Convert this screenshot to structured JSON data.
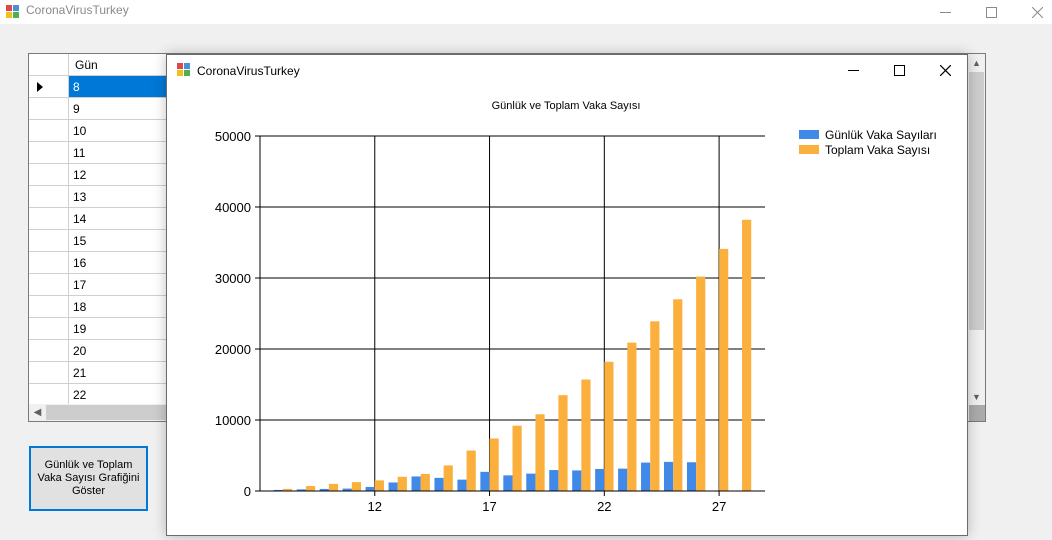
{
  "window": {
    "title": "CoronaVirusTurkey"
  },
  "grid": {
    "column_header": "Gün",
    "rows": [
      "8",
      "9",
      "10",
      "11",
      "12",
      "13",
      "14",
      "15",
      "16",
      "17",
      "18",
      "19",
      "20",
      "21",
      "22"
    ],
    "selected_index": 0
  },
  "button": {
    "label": "Günlük ve Toplam Vaka Sayısı Grafiğini Göster"
  },
  "chart_window": {
    "title": "CoronaVirusTurkey"
  },
  "chart_data": {
    "type": "bar",
    "title": "Günlük ve Toplam Vaka Sayısı",
    "xlabel": "",
    "ylabel": "",
    "x": [
      8,
      9,
      10,
      11,
      12,
      13,
      14,
      15,
      16,
      17,
      18,
      19,
      20,
      21,
      22,
      23,
      24,
      25,
      26,
      27,
      28
    ],
    "x_ticks": [
      12,
      17,
      22,
      27
    ],
    "ylim": [
      0,
      50000
    ],
    "y_ticks": [
      0,
      10000,
      20000,
      30000,
      40000,
      50000
    ],
    "grid": true,
    "legend_position": "top-right",
    "series": [
      {
        "name": "Günlük Vaka Sayıları",
        "color": "#4189e9",
        "values": [
          150,
          230,
          290,
          340,
          570,
          1200,
          2050,
          1850,
          1600,
          2700,
          2200,
          2450,
          2950,
          2900,
          3100,
          3150,
          4000,
          4100,
          4050,
          0,
          0
        ]
      },
      {
        "name": "Toplam Vaka Sayısı",
        "color": "#fbb03d",
        "values": [
          300,
          700,
          1000,
          1250,
          1500,
          2000,
          2400,
          3600,
          5700,
          7400,
          9200,
          10800,
          13500,
          15700,
          18200,
          20900,
          23900,
          27000,
          30200,
          34100,
          38200
        ]
      }
    ]
  }
}
